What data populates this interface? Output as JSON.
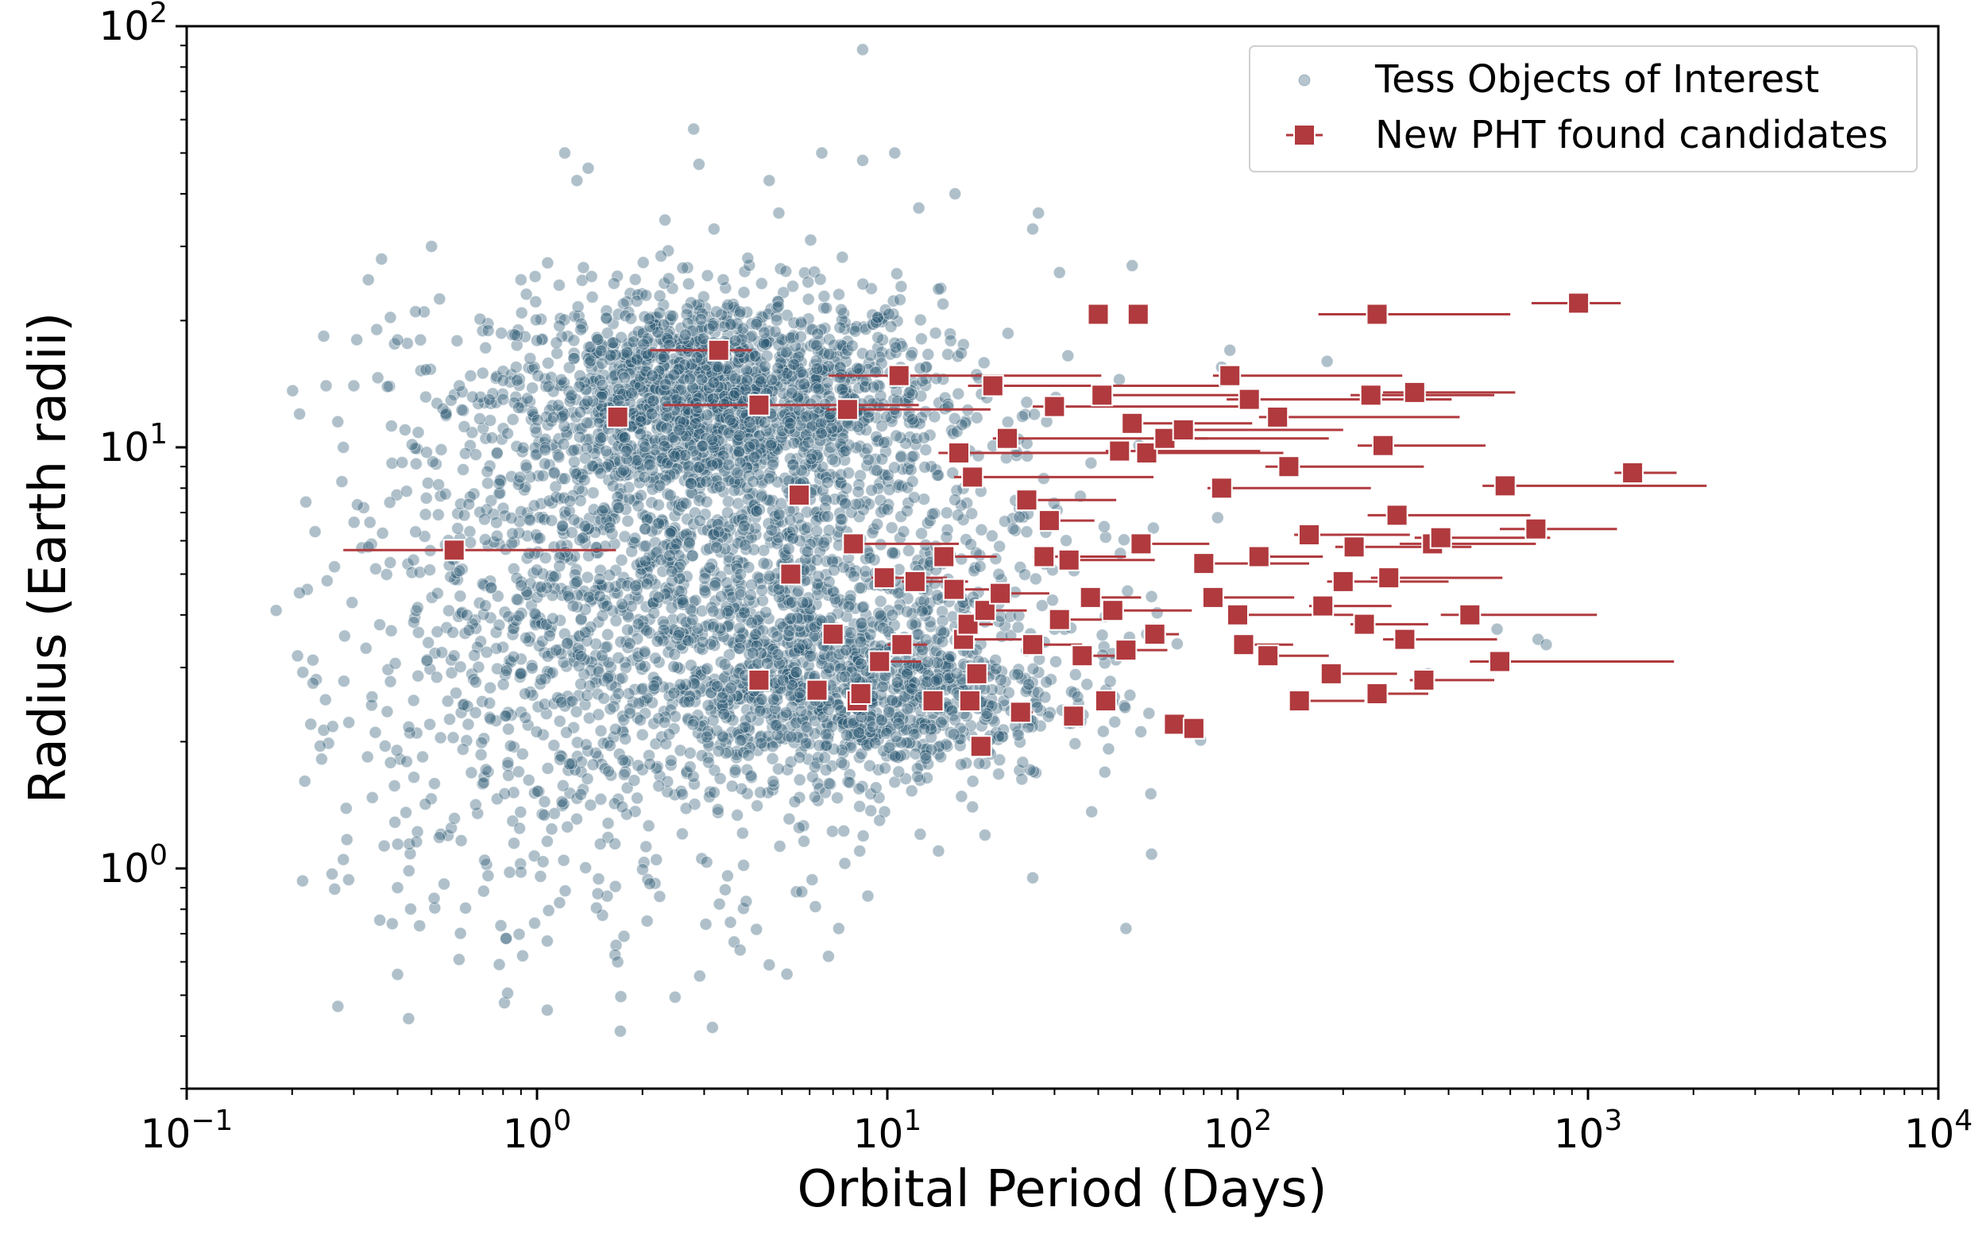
{
  "chart_data": {
    "type": "scatter",
    "xlabel": "Orbital Period (Days)",
    "ylabel": "Radius (Earth radii)",
    "x_scale": "log",
    "y_scale": "log",
    "xlim": [
      0.1,
      10000
    ],
    "ylim": [
      0.3,
      100
    ],
    "x_ticks": [
      {
        "base": "10",
        "exp": "−1",
        "value": 0.1
      },
      {
        "base": "10",
        "exp": "0",
        "value": 1
      },
      {
        "base": "10",
        "exp": "1",
        "value": 10
      },
      {
        "base": "10",
        "exp": "2",
        "value": 100
      },
      {
        "base": "10",
        "exp": "3",
        "value": 1000
      },
      {
        "base": "10",
        "exp": "4",
        "value": 10000
      }
    ],
    "y_ticks": [
      {
        "base": "10",
        "exp": "0",
        "value": 1
      },
      {
        "base": "10",
        "exp": "1",
        "value": 10
      },
      {
        "base": "10",
        "exp": "2",
        "value": 100
      }
    ],
    "grid": false,
    "legend_position": "top-right",
    "colors": {
      "toi": "#2e5a73",
      "pht": "#b03a3e"
    },
    "series": [
      {
        "name": "Tess Objects of Interest",
        "marker": "circle",
        "x": [
          8.5,
          1.2,
          1.4,
          1.3,
          2.8,
          2.9,
          3.2,
          3.4,
          4.6,
          4.9,
          6.5,
          8.5,
          10.5,
          12.3,
          15.6,
          26,
          27,
          31,
          50,
          0.21,
          0.25,
          0.27,
          0.28,
          0.3,
          0.33,
          0.36,
          0.4,
          0.42,
          0.45,
          0.5,
          0.55,
          0.6,
          0.7,
          0.8,
          0.9,
          0.18,
          0.33,
          0.38,
          0.45,
          0.52,
          0.62,
          0.78,
          0.95,
          1.1,
          0.58,
          1.3,
          2.5,
          3.3,
          4.9,
          6.3,
          9.9,
          15,
          25,
          30,
          55,
          90,
          95,
          180,
          350,
          550,
          720,
          760,
          0.26,
          0.28,
          0.29,
          0.4,
          0.9,
          2.1,
          3.5,
          5.5,
          8.8,
          14,
          19,
          26,
          0.4,
          0.43,
          0.91,
          1.7,
          3.8,
          4.6,
          5.7,
          6.1,
          9.5,
          17.5,
          7.8,
          2.6,
          1.6,
          1.75,
          6.8,
          8.3,
          3.3,
          48
        ],
        "y": [
          88,
          50,
          46,
          43,
          57,
          47,
          33,
          25,
          43,
          36,
          50,
          48,
          50,
          37,
          40,
          33,
          36,
          26,
          27,
          12,
          14,
          11.5,
          10,
          14,
          25,
          28,
          18,
          11,
          21,
          30,
          12,
          14,
          15,
          13,
          25,
          4.1,
          5.8,
          7.4,
          6.3,
          4.5,
          6.9,
          8.2,
          5.6,
          6.7,
          3.2,
          4.8,
          5.9,
          6.3,
          4.6,
          5.4,
          4.7,
          4.3,
          6.3,
          3.7,
          3.6,
          15.5,
          17,
          16,
          2.9,
          3.7,
          3.5,
          3.4,
          0.97,
          1.05,
          0.94,
          0.9,
          0.98,
          0.92,
          0.96,
          0.88,
          0.86,
          1.1,
          1.2,
          0.95,
          0.56,
          0.44,
          0.62,
          0.6,
          0.64,
          0.59,
          0.88,
          0.94,
          1.3,
          1.4,
          1.6,
          1.5,
          1.7,
          1.4,
          2.5,
          2.1,
          1.9,
          0.72
        ],
        "cloud_x": [
          0.2,
          0.25,
          0.3,
          0.35,
          0.4,
          0.5,
          0.6,
          0.7,
          0.8,
          1,
          1.2,
          1.5,
          2,
          2.5,
          3,
          3.5,
          4,
          5,
          6,
          8,
          10,
          12,
          15,
          20,
          25,
          30,
          40,
          60,
          80
        ],
        "cloud_y": [
          12,
          8,
          5.5,
          3,
          2,
          1.3,
          1.1,
          20,
          16,
          14,
          12,
          10,
          9,
          8,
          7,
          6,
          5,
          4,
          3.5,
          3,
          2.5,
          2.2,
          2,
          1.8,
          1.6,
          1.4,
          1.2,
          1,
          18
        ]
      },
      {
        "name": "New PHT found candidates",
        "marker": "square",
        "x": [
          0.58,
          1.7,
          3.3,
          4.3,
          4.3,
          5.3,
          5.6,
          6.3,
          7.0,
          7.7,
          8.0,
          8.2,
          8.4,
          9.5,
          9.8,
          10.8,
          11,
          12,
          13.5,
          14.5,
          15.5,
          16,
          16.5,
          17,
          17.2,
          17.5,
          18,
          18.5,
          19,
          20,
          21,
          22,
          24,
          25,
          26,
          28,
          29,
          30,
          31,
          33,
          34,
          36,
          38,
          40,
          41,
          42,
          44,
          46,
          48,
          50,
          53,
          55,
          58,
          62,
          66,
          70,
          75,
          80,
          85,
          90,
          95,
          100,
          104,
          108,
          115,
          122,
          130,
          140,
          150,
          160,
          175,
          185,
          200,
          215,
          230,
          240,
          250,
          260,
          270,
          285,
          300,
          320,
          340,
          360,
          380,
          460,
          560,
          580,
          710,
          940,
          1340,
          40,
          52,
          250
        ],
        "y": [
          5.7,
          11.8,
          17,
          12.6,
          2.8,
          5,
          7.7,
          2.65,
          3.6,
          12.3,
          5.9,
          2.5,
          2.6,
          3.1,
          4.9,
          14.8,
          3.4,
          4.8,
          2.5,
          5.5,
          4.6,
          9.7,
          3.5,
          3.8,
          2.5,
          8.5,
          2.9,
          1.95,
          4.1,
          14,
          4.5,
          10.5,
          2.35,
          7.5,
          3.4,
          5.5,
          6.7,
          12.5,
          3.9,
          5.4,
          2.3,
          3.2,
          4.4,
          20.7,
          13.3,
          2.5,
          4.1,
          9.8,
          3.3,
          11.4,
          5.9,
          9.7,
          3.6,
          10.5,
          2.2,
          11,
          2.15,
          5.3,
          4.4,
          8,
          14.8,
          4,
          3.4,
          13,
          5.5,
          3.2,
          11.8,
          9,
          2.5,
          6.2,
          4.2,
          2.9,
          4.8,
          5.8,
          3.8,
          13.3,
          2.6,
          10.1,
          4.9,
          6.9,
          3.5,
          13.5,
          2.8,
          5.9,
          6.1,
          4,
          3.1,
          8.1,
          6.4,
          22,
          8.7,
          20.7,
          20.7,
          20.7
        ],
        "xerr_low": [
          0.3,
          0.1,
          1.2,
          2,
          0.3,
          0.3,
          0.2,
          0.3,
          0.4,
          1,
          0.5,
          0.4,
          0.4,
          0.6,
          0.8,
          4,
          1,
          1,
          0.5,
          1,
          1,
          2,
          1,
          0.5,
          0.3,
          2,
          0.5,
          0.3,
          1,
          3,
          1,
          2,
          0.5,
          1,
          1,
          2,
          1,
          4,
          1,
          2,
          0.5,
          1,
          1,
          0.1,
          2,
          0.5,
          2,
          4,
          1,
          3,
          2,
          3,
          2,
          5,
          0.5,
          5,
          0.5,
          5,
          5,
          8,
          10,
          6,
          6,
          15,
          8,
          8,
          15,
          20,
          10,
          15,
          15,
          10,
          20,
          25,
          20,
          30,
          15,
          40,
          30,
          50,
          40,
          60,
          30,
          70,
          60,
          80,
          100,
          80,
          150,
          250,
          150,
          0.1,
          0.1,
          80
        ],
        "xerr_high": [
          1.1,
          0.1,
          0.8,
          8,
          0.3,
          0.3,
          0.2,
          0.3,
          0.4,
          12,
          8,
          0.4,
          0.4,
          3,
          5,
          30,
          2,
          5,
          0.5,
          6,
          5,
          30,
          8,
          3,
          1,
          40,
          1.5,
          0.3,
          6,
          70,
          8,
          60,
          2,
          20,
          10,
          20,
          10,
          80,
          12,
          25,
          1,
          10,
          15,
          0.1,
          60,
          1,
          30,
          70,
          15,
          60,
          30,
          80,
          10,
          120,
          2,
          130,
          2,
          80,
          60,
          150,
          200,
          120,
          40,
          300,
          60,
          60,
          300,
          200,
          80,
          150,
          100,
          100,
          200,
          250,
          120,
          300,
          100,
          250,
          300,
          400,
          250,
          300,
          200,
          350,
          400,
          600,
          1200,
          1600,
          500,
          300,
          450,
          0.1,
          0.1,
          350
        ]
      }
    ]
  }
}
